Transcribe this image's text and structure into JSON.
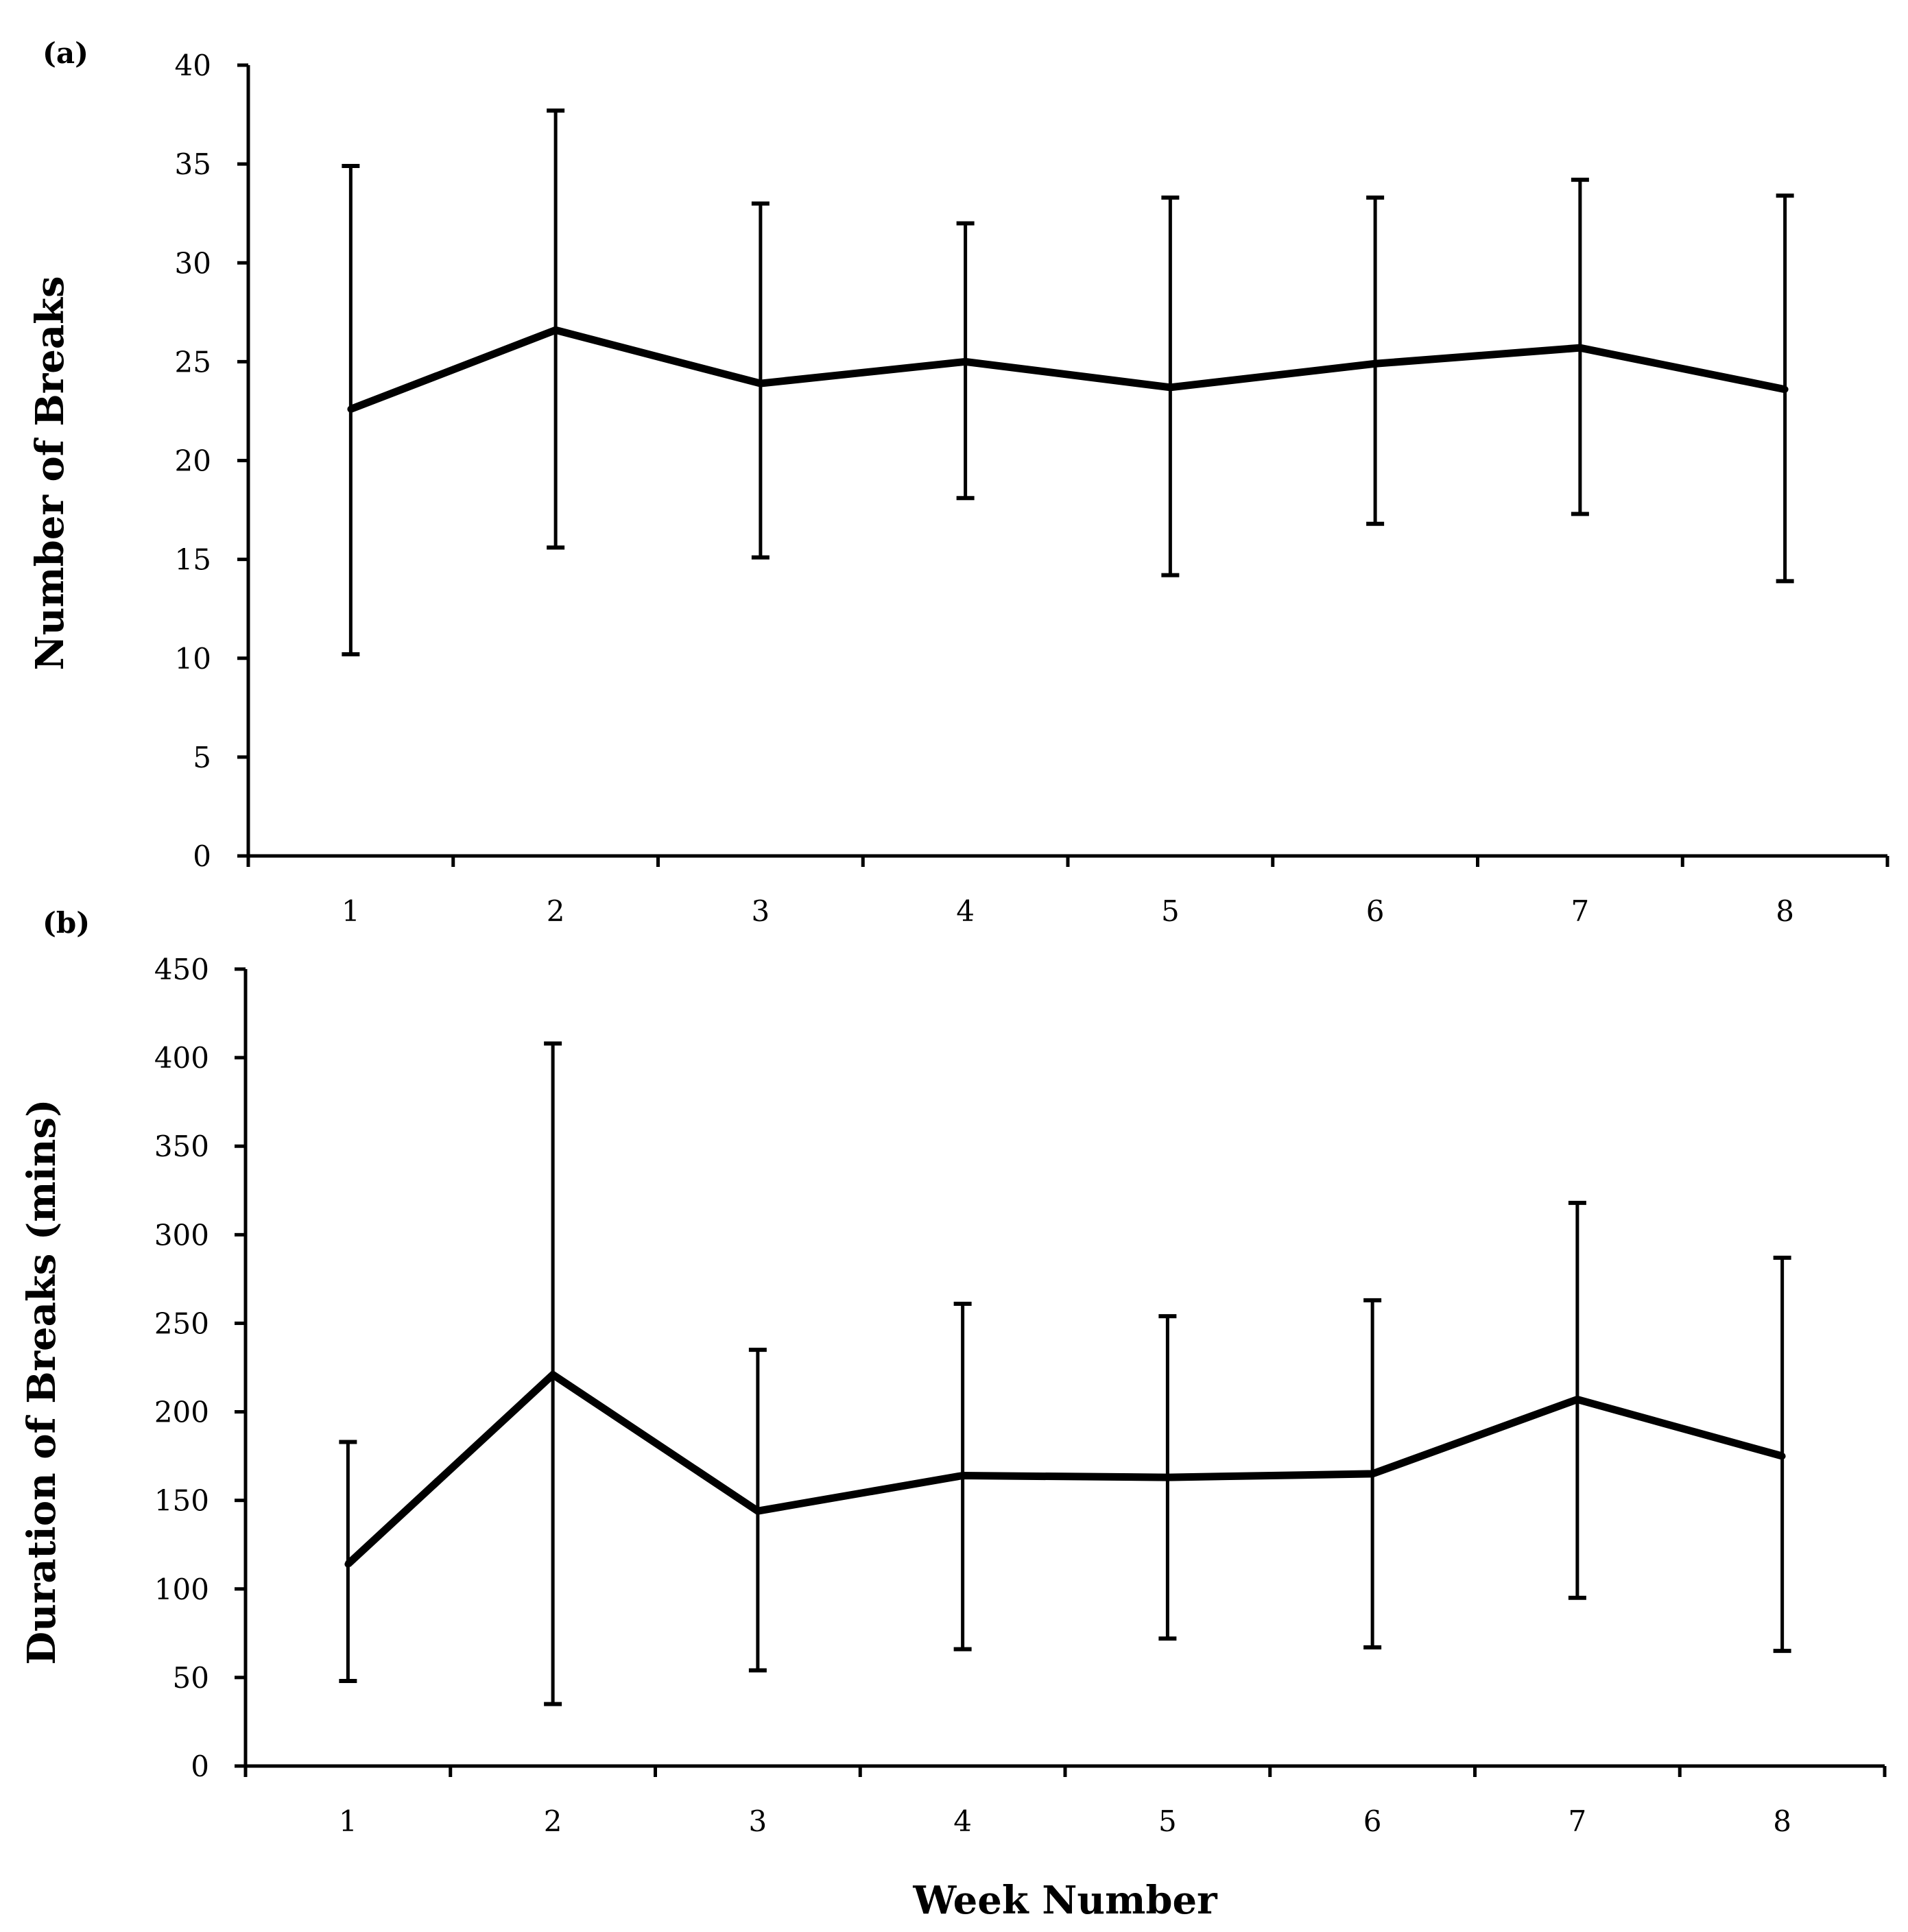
{
  "chart_data": [
    {
      "type": "line",
      "panel_label": "(a)",
      "title": "",
      "xlabel": "",
      "ylabel": "Number of Breaks",
      "categories": [
        "1",
        "2",
        "3",
        "4",
        "5",
        "6",
        "7",
        "8"
      ],
      "ylim": [
        0,
        40
      ],
      "yticks": [
        "0",
        "5",
        "10",
        "15",
        "20",
        "25",
        "30",
        "35",
        "40"
      ],
      "grid": false,
      "series": [
        {
          "name": "Number of Breaks",
          "values": [
            22.6,
            26.6,
            23.9,
            25.0,
            23.7,
            24.9,
            25.7,
            23.6
          ],
          "error_low": [
            10.2,
            15.6,
            15.1,
            18.1,
            14.2,
            16.8,
            17.3,
            13.9
          ],
          "error_high": [
            34.9,
            37.7,
            33.0,
            32.0,
            33.3,
            33.3,
            34.2,
            33.4
          ]
        }
      ]
    },
    {
      "type": "line",
      "panel_label": "(b)",
      "title": "",
      "xlabel": "Week Number",
      "ylabel": "Duration of Breaks (mins)",
      "categories": [
        "1",
        "2",
        "3",
        "4",
        "5",
        "6",
        "7",
        "8"
      ],
      "ylim": [
        0,
        450
      ],
      "yticks": [
        "0",
        "50",
        "100",
        "150",
        "200",
        "250",
        "300",
        "350",
        "400",
        "450"
      ],
      "grid": false,
      "series": [
        {
          "name": "Duration of Breaks (mins)",
          "values": [
            114,
            221,
            144,
            164,
            163,
            165,
            207,
            175
          ],
          "error_low": [
            48,
            35,
            54,
            66,
            72,
            67,
            95,
            65
          ],
          "error_high": [
            183,
            408,
            235,
            261,
            254,
            263,
            318,
            287
          ]
        }
      ]
    }
  ]
}
